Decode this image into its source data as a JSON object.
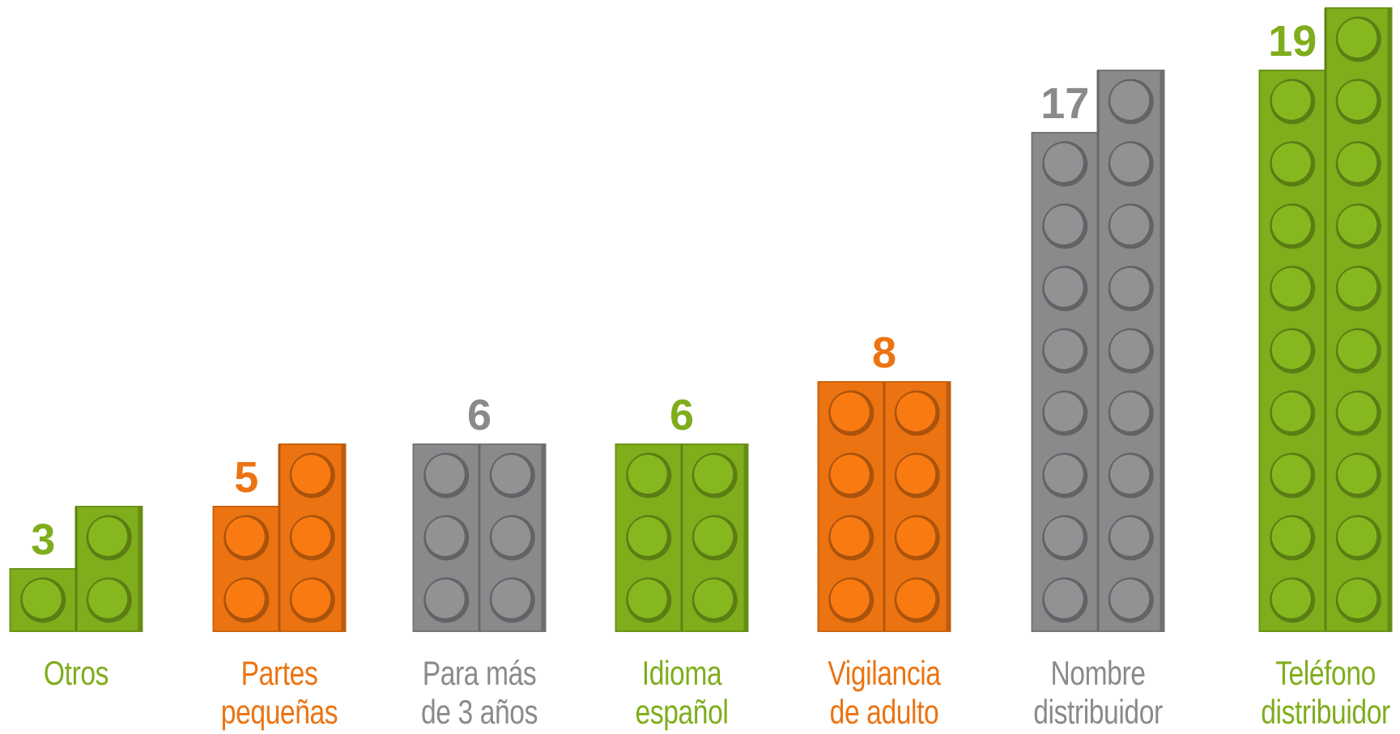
{
  "chart_data": {
    "type": "brick",
    "categories": [
      "Otros",
      "Partes\npequeñas",
      "Para más\nde 3 años",
      "Idioma\nespañol",
      "Vigilancia\nde adulto",
      "Nombre\ndistribuidor",
      "Teléfono\ndistribuidor"
    ],
    "values": [
      3,
      5,
      6,
      6,
      8,
      17,
      19
    ],
    "colors": [
      "#7fad1c",
      "#ec7311",
      "#8a8a8d",
      "#7fad1c",
      "#ec7311",
      "#8a8a8d",
      "#7fad1c"
    ]
  }
}
